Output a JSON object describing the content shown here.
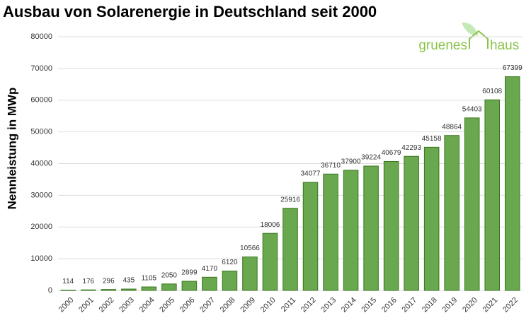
{
  "chart_data": {
    "type": "bar",
    "title": "Ausbau von Solarenergie in Deutschland seit 2000",
    "y_label": "Nennleistung in MWp",
    "categories": [
      "2000",
      "2001",
      "2002",
      "2003",
      "2004",
      "2005",
      "2006",
      "2007",
      "2008",
      "2009",
      "2010",
      "2011",
      "2012",
      "2013",
      "2014",
      "2015",
      "2016",
      "2017",
      "2018",
      "2019",
      "2020",
      "2021",
      "2022"
    ],
    "values": [
      114,
      176,
      296,
      435,
      1105,
      2050,
      2899,
      4170,
      6120,
      10566,
      18006,
      25916,
      34077,
      36710,
      37900,
      39224,
      40679,
      42293,
      45158,
      48864,
      54403,
      60108,
      67399
    ],
    "color": "#6aa84f",
    "ylim": [
      0,
      80000
    ],
    "yticks": [
      0,
      10000,
      20000,
      30000,
      40000,
      50000,
      60000,
      70000,
      80000
    ],
    "grid": true
  },
  "logo": {
    "left": "gruenes",
    "right": "haus"
  }
}
